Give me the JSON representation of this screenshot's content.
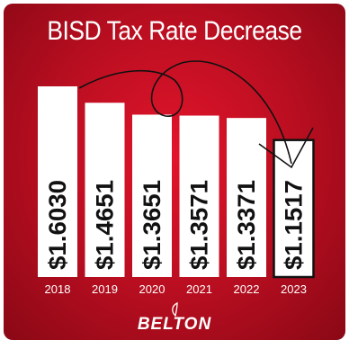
{
  "logo_text": "BELTON",
  "colors": {
    "background": "#c8102e",
    "bar": "#ffffff",
    "label": "#111111",
    "highlight_border": "#111111"
  },
  "chart_data": {
    "type": "bar",
    "title": "BISD Tax Rate Decrease",
    "categories": [
      "2018",
      "2019",
      "2020",
      "2021",
      "2022",
      "2023"
    ],
    "values": [
      1.603,
      1.4651,
      1.3651,
      1.3571,
      1.3371,
      1.1517
    ],
    "value_labels": [
      "$1.6030",
      "$1.4651",
      "$1.3651",
      "$1.3571",
      "$1.3371",
      "$1.1517"
    ],
    "highlighted": "2023",
    "xlabel": "",
    "ylabel": "",
    "ylim": [
      0,
      1.603
    ],
    "grid": false,
    "legend": "none"
  }
}
